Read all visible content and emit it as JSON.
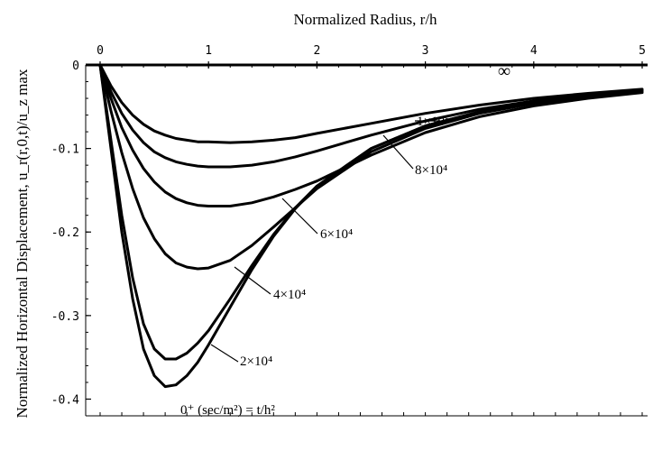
{
  "chart_data": {
    "type": "line",
    "title": "Normalized Radius, r/h",
    "ylabel": "Normalized Horizontal Displacement, u_r(r,0,t)/u_z max",
    "xlim": [
      0,
      5
    ],
    "ylim": [
      -0.42,
      0
    ],
    "x_ticks": [
      "0",
      "1",
      "2",
      "3",
      "4",
      "5"
    ],
    "y_ticks": [
      "0",
      "-0.1",
      "-0.2",
      "-0.3",
      "-0.4"
    ],
    "x_tick_values": [
      0,
      1,
      2,
      3,
      4,
      5
    ],
    "y_tick_values": [
      0,
      -0.1,
      -0.2,
      -0.3,
      -0.4
    ],
    "grid": false,
    "series": [
      {
        "label": "0⁺ (sec/m²) = t/h²",
        "x": [
          0,
          0.1,
          0.2,
          0.3,
          0.4,
          0.5,
          0.6,
          0.7,
          0.8,
          0.9,
          1.0,
          1.2,
          1.4,
          1.6,
          1.8,
          2.0,
          2.5,
          3.0,
          3.5,
          4.0,
          4.5,
          5.0
        ],
        "y": [
          0,
          -0.1,
          -0.2,
          -0.28,
          -0.34,
          -0.372,
          -0.385,
          -0.383,
          -0.372,
          -0.356,
          -0.335,
          -0.29,
          -0.245,
          -0.205,
          -0.172,
          -0.145,
          -0.1,
          -0.073,
          -0.056,
          -0.045,
          -0.037,
          -0.031
        ]
      },
      {
        "label": "2×10⁴",
        "x": [
          0,
          0.1,
          0.2,
          0.3,
          0.4,
          0.5,
          0.6,
          0.7,
          0.8,
          0.9,
          1.0,
          1.2,
          1.4,
          1.6,
          1.8,
          2.0,
          2.5,
          3.0,
          3.5,
          4.0,
          4.5,
          5.0
        ],
        "y": [
          0,
          -0.09,
          -0.18,
          -0.255,
          -0.31,
          -0.34,
          -0.352,
          -0.352,
          -0.345,
          -0.333,
          -0.318,
          -0.28,
          -0.24,
          -0.203,
          -0.171,
          -0.145,
          -0.1,
          -0.073,
          -0.056,
          -0.045,
          -0.037,
          -0.031
        ]
      },
      {
        "label": "4×10⁴",
        "x": [
          0,
          0.1,
          0.2,
          0.3,
          0.4,
          0.5,
          0.6,
          0.7,
          0.8,
          0.9,
          1.0,
          1.2,
          1.4,
          1.6,
          1.8,
          2.0,
          2.5,
          3.0,
          3.5,
          4.0,
          4.5,
          5.0
        ],
        "y": [
          0,
          -0.055,
          -0.105,
          -0.148,
          -0.183,
          -0.208,
          -0.226,
          -0.237,
          -0.242,
          -0.244,
          -0.243,
          -0.234,
          -0.216,
          -0.194,
          -0.171,
          -0.148,
          -0.104,
          -0.076,
          -0.058,
          -0.046,
          -0.038,
          -0.032
        ]
      },
      {
        "label": "6×10⁴",
        "x": [
          0,
          0.1,
          0.2,
          0.3,
          0.4,
          0.5,
          0.6,
          0.7,
          0.8,
          0.9,
          1.0,
          1.2,
          1.4,
          1.6,
          1.8,
          2.0,
          2.5,
          3.0,
          3.5,
          4.0,
          4.5,
          5.0
        ],
        "y": [
          0,
          -0.04,
          -0.075,
          -0.102,
          -0.124,
          -0.14,
          -0.152,
          -0.16,
          -0.165,
          -0.168,
          -0.169,
          -0.169,
          -0.165,
          -0.158,
          -0.149,
          -0.139,
          -0.108,
          -0.081,
          -0.062,
          -0.049,
          -0.04,
          -0.033
        ]
      },
      {
        "label": "8×10⁴",
        "x": [
          0,
          0.1,
          0.2,
          0.3,
          0.4,
          0.5,
          0.6,
          0.7,
          0.8,
          0.9,
          1.0,
          1.2,
          1.4,
          1.6,
          1.8,
          2.0,
          2.5,
          3.0,
          3.5,
          4.0,
          4.5,
          5.0
        ],
        "y": [
          0,
          -0.032,
          -0.058,
          -0.078,
          -0.093,
          -0.104,
          -0.111,
          -0.116,
          -0.119,
          -0.121,
          -0.122,
          -0.122,
          -0.12,
          -0.116,
          -0.11,
          -0.103,
          -0.084,
          -0.067,
          -0.053,
          -0.043,
          -0.036,
          -0.03
        ]
      },
      {
        "label": "1×10⁵",
        "x": [
          0,
          0.1,
          0.2,
          0.3,
          0.4,
          0.5,
          0.6,
          0.7,
          0.8,
          0.9,
          1.0,
          1.2,
          1.4,
          1.6,
          1.8,
          2.0,
          2.5,
          3.0,
          3.5,
          4.0,
          4.5,
          5.0
        ],
        "y": [
          0,
          -0.025,
          -0.045,
          -0.06,
          -0.071,
          -0.079,
          -0.084,
          -0.088,
          -0.09,
          -0.092,
          -0.092,
          -0.093,
          -0.092,
          -0.09,
          -0.087,
          -0.082,
          -0.07,
          -0.058,
          -0.048,
          -0.04,
          -0.034,
          -0.029
        ]
      }
    ],
    "annotations": [
      {
        "text": "1×10⁵",
        "series": 5
      },
      {
        "text": "8×10⁴",
        "series": 4
      },
      {
        "text": "6×10⁴",
        "series": 3
      },
      {
        "text": "4×10⁴",
        "series": 2
      },
      {
        "text": "2×10⁴",
        "series": 1
      },
      {
        "text": "0⁺ (sec/m²) = t/h²",
        "series": 0
      },
      {
        "text": "∞",
        "series": null
      }
    ]
  }
}
